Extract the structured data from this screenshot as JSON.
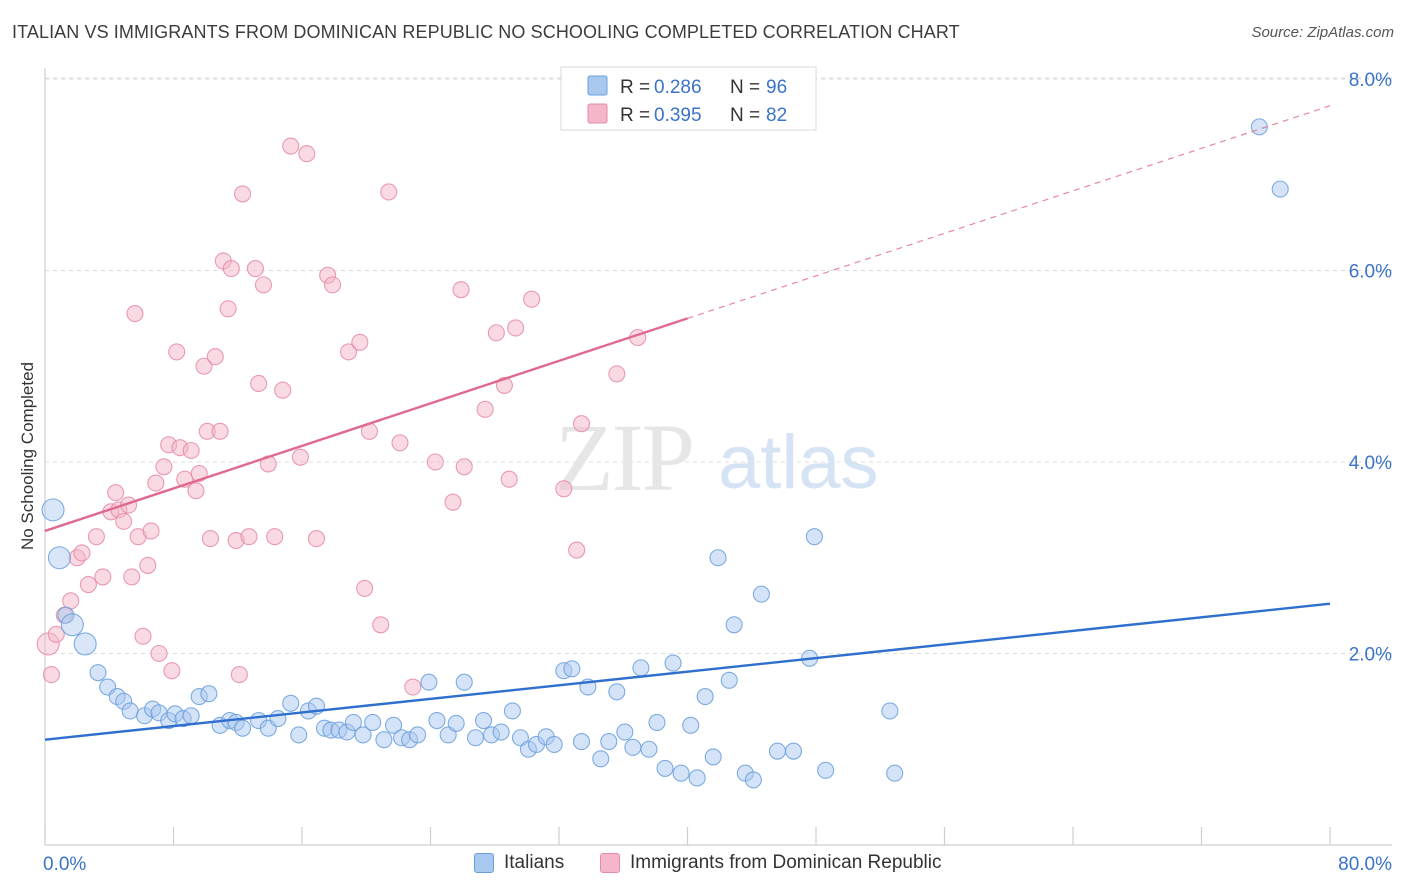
{
  "title": "ITALIAN VS IMMIGRANTS FROM DOMINICAN REPUBLIC NO SCHOOLING COMPLETED CORRELATION CHART",
  "source": "Source: ZipAtlas.com",
  "watermark": {
    "zip": "ZIP",
    "atlas": "atlas"
  },
  "legend_top": [
    {
      "r_label": "R = ",
      "r_value": "0.286",
      "n_label": "N = ",
      "n_value": "96"
    },
    {
      "r_label": "R = ",
      "r_value": "0.395",
      "n_label": "N = ",
      "n_value": "82"
    }
  ],
  "colors": {
    "blue_fill": "#a9c8ef",
    "blue_stroke": "#6a9fdc",
    "blue_line": "#2f6fce",
    "pink_fill": "#f4b6c8",
    "pink_stroke": "#e58aa8",
    "pink_line": "#e0698f",
    "tick_label": "#3a73c8",
    "grid": "#dcdcdc"
  },
  "chart_data": {
    "type": "scatter",
    "title": "ITALIAN VS IMMIGRANTS FROM DOMINICAN REPUBLIC NO SCHOOLING COMPLETED CORRELATION CHART",
    "xlabel": "",
    "ylabel": "No Schooling Completed",
    "xlim": [
      0,
      80
    ],
    "ylim": [
      0,
      8.5
    ],
    "x_tick_labels": [
      "0.0%",
      "80.0%"
    ],
    "y_ticks": [
      2,
      4,
      6,
      8
    ],
    "y_tick_labels": [
      "2.0%",
      "4.0%",
      "6.0%",
      "8.0%"
    ],
    "grid": true,
    "legend_position": "top-center",
    "series": [
      {
        "name": "Italians",
        "color": "#a9c8ef",
        "trend": {
          "x": [
            0,
            80
          ],
          "y": [
            1.1,
            2.52
          ],
          "style": "solid"
        },
        "points": [
          [
            0.5,
            3.5
          ],
          [
            0.9,
            3.0
          ],
          [
            1.3,
            2.4
          ],
          [
            1.7,
            2.3
          ],
          [
            2.5,
            2.1
          ],
          [
            3.3,
            1.8
          ],
          [
            3.9,
            1.65
          ],
          [
            4.5,
            1.55
          ],
          [
            4.9,
            1.5
          ],
          [
            5.3,
            1.4
          ],
          [
            6.2,
            1.35
          ],
          [
            6.7,
            1.42
          ],
          [
            7.1,
            1.38
          ],
          [
            7.7,
            1.3
          ],
          [
            8.1,
            1.37
          ],
          [
            8.6,
            1.32
          ],
          [
            9.1,
            1.35
          ],
          [
            9.6,
            1.55
          ],
          [
            10.2,
            1.58
          ],
          [
            10.9,
            1.25
          ],
          [
            11.5,
            1.3
          ],
          [
            11.9,
            1.28
          ],
          [
            12.3,
            1.22
          ],
          [
            13.3,
            1.3
          ],
          [
            13.9,
            1.22
          ],
          [
            14.5,
            1.32
          ],
          [
            15.3,
            1.48
          ],
          [
            15.8,
            1.15
          ],
          [
            16.4,
            1.4
          ],
          [
            16.9,
            1.45
          ],
          [
            17.4,
            1.22
          ],
          [
            17.8,
            1.2
          ],
          [
            18.3,
            1.2
          ],
          [
            18.8,
            1.18
          ],
          [
            19.2,
            1.28
          ],
          [
            19.8,
            1.15
          ],
          [
            20.4,
            1.28
          ],
          [
            21.1,
            1.1
          ],
          [
            21.7,
            1.25
          ],
          [
            22.2,
            1.12
          ],
          [
            22.7,
            1.1
          ],
          [
            23.2,
            1.15
          ],
          [
            23.9,
            1.7
          ],
          [
            24.4,
            1.3
          ],
          [
            25.1,
            1.15
          ],
          [
            25.6,
            1.27
          ],
          [
            26.1,
            1.7
          ],
          [
            26.8,
            1.12
          ],
          [
            27.3,
            1.3
          ],
          [
            27.8,
            1.15
          ],
          [
            28.4,
            1.18
          ],
          [
            29.1,
            1.4
          ],
          [
            29.6,
            1.12
          ],
          [
            30.1,
            1.0
          ],
          [
            30.6,
            1.05
          ],
          [
            31.2,
            1.13
          ],
          [
            31.7,
            1.05
          ],
          [
            32.3,
            1.82
          ],
          [
            32.8,
            1.84
          ],
          [
            33.4,
            1.08
          ],
          [
            33.8,
            1.65
          ],
          [
            34.6,
            0.9
          ],
          [
            35.1,
            1.08
          ],
          [
            35.6,
            1.6
          ],
          [
            36.1,
            1.18
          ],
          [
            36.6,
            1.02
          ],
          [
            37.1,
            1.85
          ],
          [
            37.6,
            1.0
          ],
          [
            38.1,
            1.28
          ],
          [
            38.6,
            0.8
          ],
          [
            39.1,
            1.9
          ],
          [
            39.6,
            0.75
          ],
          [
            40.2,
            1.25
          ],
          [
            40.6,
            0.7
          ],
          [
            41.1,
            1.55
          ],
          [
            41.6,
            0.92
          ],
          [
            41.9,
            3.0
          ],
          [
            42.6,
            1.72
          ],
          [
            42.9,
            2.3
          ],
          [
            43.6,
            0.75
          ],
          [
            44.1,
            0.68
          ],
          [
            44.6,
            2.62
          ],
          [
            45.6,
            0.98
          ],
          [
            46.6,
            0.98
          ],
          [
            47.6,
            1.95
          ],
          [
            47.9,
            3.22
          ],
          [
            48.6,
            0.78
          ],
          [
            52.6,
            1.4
          ],
          [
            52.9,
            0.75
          ],
          [
            75.6,
            7.5
          ],
          [
            76.9,
            6.85
          ]
        ],
        "large_points": [
          [
            0.9,
            3.0
          ],
          [
            1.7,
            2.3
          ],
          [
            2.5,
            2.1
          ],
          [
            0.5,
            3.5
          ]
        ]
      },
      {
        "name": "Immigrants from Dominican Republic",
        "color": "#f4b6c8",
        "trend": {
          "x": [
            0,
            40
          ],
          "y": [
            3.28,
            5.5
          ],
          "style": "solid",
          "extended_to": [
            80,
            7.72
          ],
          "extended_style": "dashed"
        },
        "points": [
          [
            0.2,
            2.1
          ],
          [
            0.4,
            1.78
          ],
          [
            0.7,
            2.2
          ],
          [
            1.2,
            2.4
          ],
          [
            1.6,
            2.55
          ],
          [
            2.0,
            3.0
          ],
          [
            2.3,
            3.05
          ],
          [
            2.7,
            2.72
          ],
          [
            3.2,
            3.22
          ],
          [
            3.6,
            2.8
          ],
          [
            4.1,
            3.48
          ],
          [
            4.4,
            3.68
          ],
          [
            4.6,
            3.5
          ],
          [
            4.9,
            3.38
          ],
          [
            5.2,
            3.55
          ],
          [
            5.4,
            2.8
          ],
          [
            5.6,
            5.55
          ],
          [
            5.8,
            3.22
          ],
          [
            6.1,
            2.18
          ],
          [
            6.4,
            2.92
          ],
          [
            6.6,
            3.28
          ],
          [
            6.9,
            3.78
          ],
          [
            7.1,
            2.0
          ],
          [
            7.4,
            3.95
          ],
          [
            7.7,
            4.18
          ],
          [
            7.9,
            1.82
          ],
          [
            8.2,
            5.15
          ],
          [
            8.4,
            4.15
          ],
          [
            8.7,
            3.82
          ],
          [
            9.1,
            4.12
          ],
          [
            9.4,
            3.7
          ],
          [
            9.6,
            3.88
          ],
          [
            9.9,
            5.0
          ],
          [
            10.1,
            4.32
          ],
          [
            10.3,
            3.2
          ],
          [
            10.6,
            5.1
          ],
          [
            10.9,
            4.32
          ],
          [
            11.1,
            6.1
          ],
          [
            11.4,
            5.6
          ],
          [
            11.6,
            6.02
          ],
          [
            11.9,
            3.18
          ],
          [
            12.1,
            1.78
          ],
          [
            12.3,
            6.8
          ],
          [
            12.7,
            3.22
          ],
          [
            13.1,
            6.02
          ],
          [
            13.3,
            4.82
          ],
          [
            13.6,
            5.85
          ],
          [
            13.9,
            3.98
          ],
          [
            14.3,
            3.22
          ],
          [
            14.8,
            4.75
          ],
          [
            15.3,
            7.3
          ],
          [
            15.9,
            4.05
          ],
          [
            16.3,
            7.22
          ],
          [
            16.9,
            3.2
          ],
          [
            17.6,
            5.95
          ],
          [
            17.9,
            5.85
          ],
          [
            18.9,
            5.15
          ],
          [
            19.6,
            5.25
          ],
          [
            19.9,
            2.68
          ],
          [
            20.2,
            4.32
          ],
          [
            20.9,
            2.3
          ],
          [
            21.4,
            6.82
          ],
          [
            22.1,
            4.2
          ],
          [
            22.9,
            1.65
          ],
          [
            24.3,
            4.0
          ],
          [
            25.4,
            3.58
          ],
          [
            25.9,
            5.8
          ],
          [
            26.1,
            3.95
          ],
          [
            27.4,
            4.55
          ],
          [
            28.1,
            5.35
          ],
          [
            28.6,
            4.8
          ],
          [
            28.9,
            3.82
          ],
          [
            29.3,
            5.4
          ],
          [
            30.3,
            5.7
          ],
          [
            32.3,
            3.72
          ],
          [
            33.1,
            3.08
          ],
          [
            33.4,
            4.4
          ],
          [
            35.6,
            4.92
          ],
          [
            36.9,
            5.3
          ]
        ],
        "large_points": [
          [
            0.2,
            2.1
          ]
        ]
      }
    ]
  },
  "legend_bottom": [
    {
      "label": "Italians"
    },
    {
      "label": "Immigrants from Dominican Republic"
    }
  ]
}
